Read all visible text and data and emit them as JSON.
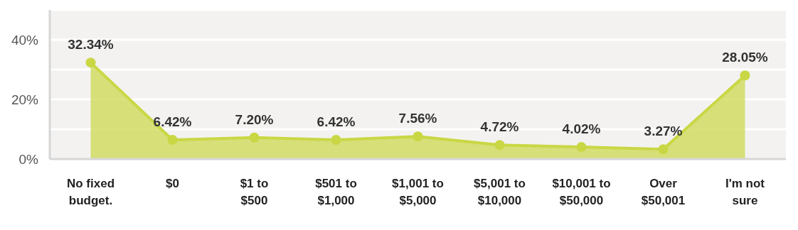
{
  "chart_data": {
    "type": "area",
    "categories": [
      "No fixed budget.",
      "$0",
      "$1 to $500",
      "$501 to $1,000",
      "$1,001 to $5,000",
      "$5,001 to $10,000",
      "$10,001 to $50,000",
      "Over $50,001",
      "I'm not sure"
    ],
    "series": [
      {
        "color": "#c9d744",
        "values": [
          32.34,
          6.42,
          7.2,
          6.42,
          7.56,
          4.72,
          4.02,
          3.27,
          28.05
        ],
        "value_labels": [
          "32.34%",
          "6.42%",
          "7.20%",
          "6.42%",
          "7.56%",
          "4.72%",
          "4.02%",
          "3.27%",
          "28.05%"
        ]
      }
    ],
    "ylim": [
      0,
      50
    ],
    "yticks": [
      {
        "value": 0,
        "label": "0%"
      },
      {
        "value": 10,
        "label": null
      },
      {
        "value": 20,
        "label": "20%"
      },
      {
        "value": 30,
        "label": null
      },
      {
        "value": 40,
        "label": "40%"
      },
      {
        "value": 50,
        "label": null
      }
    ],
    "grid": "y",
    "marker": "circle"
  }
}
